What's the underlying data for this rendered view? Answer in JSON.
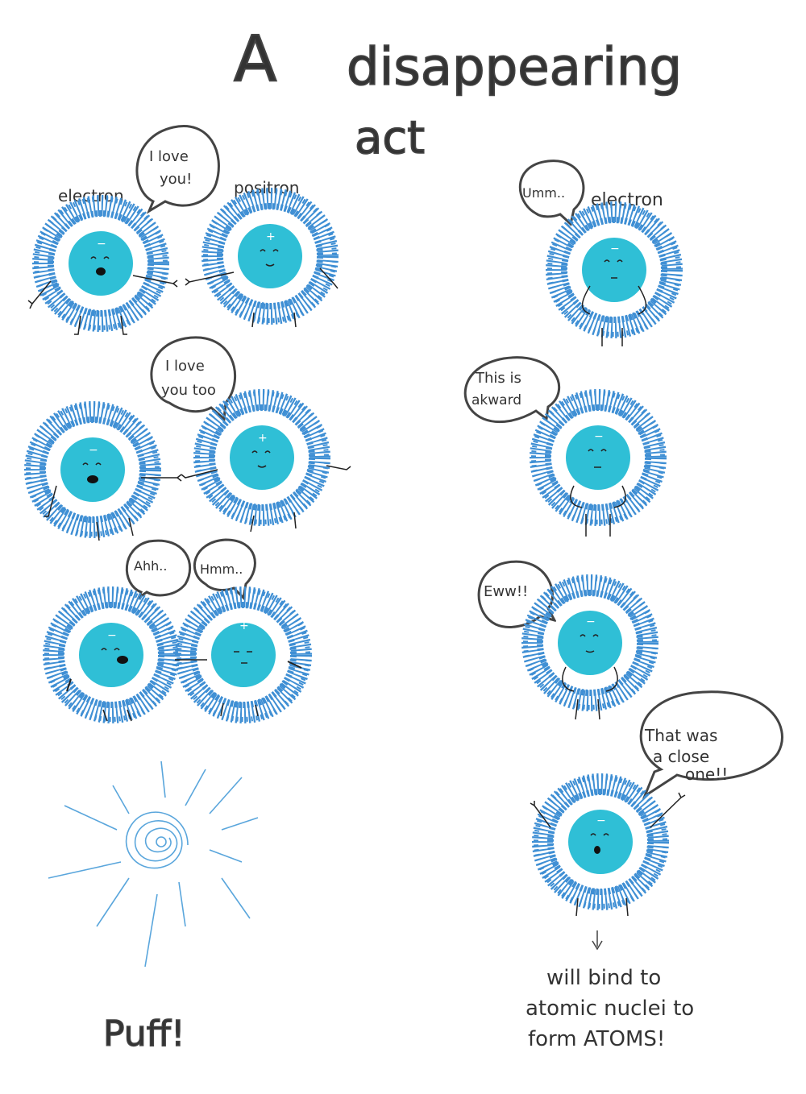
{
  "title": {
    "line1": "A",
    "line2": "disappearing",
    "line3": "act"
  },
  "panels": {
    "p1": {
      "label_left": "electron",
      "label_right": "positron",
      "bubble_line1": "I love",
      "bubble_line2": "you!"
    },
    "p2": {
      "bubble_line1": "I love",
      "bubble_line2": "you too"
    },
    "p3": {
      "bubble_left": "Ahh..",
      "bubble_right": "Hmm.."
    },
    "p4": {
      "exclaim": "Puff!"
    },
    "r1": {
      "bubble": "Umm..",
      "label": "electron"
    },
    "r2": {
      "bubble_line1": "This is",
      "bubble_line2": "akward"
    },
    "r3": {
      "bubble": "Eww!!"
    },
    "r4": {
      "bubble_line1": "That was",
      "bubble_line2": "a close",
      "bubble_line3": "one!!"
    },
    "r5": {
      "note_line1": "will bind to",
      "note_line2": "atomic nuclei to",
      "note_line3": "form ATOMS!"
    }
  },
  "colors": {
    "fuzz": "#3f8fd4",
    "core": "#2fbfd6",
    "ink": "#333333",
    "swirl": "#5aa6dc"
  },
  "symbols": {
    "minus": "−",
    "plus": "+"
  }
}
